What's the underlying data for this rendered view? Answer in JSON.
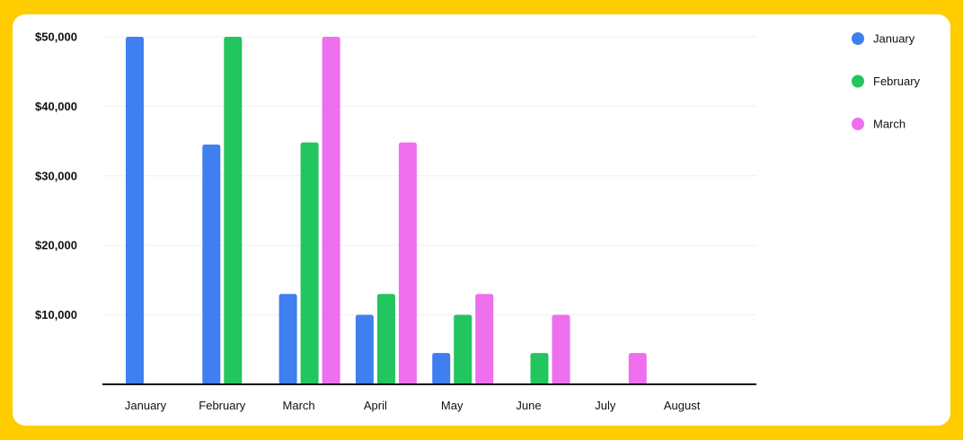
{
  "chart_data": {
    "type": "bar",
    "categories": [
      "January",
      "February",
      "March",
      "April",
      "May",
      "June",
      "July",
      "August"
    ],
    "series": [
      {
        "name": "January",
        "color": "#3F7FEF",
        "values": [
          50000,
          34500,
          13000,
          10000,
          4500,
          0,
          0,
          0
        ]
      },
      {
        "name": "February",
        "color": "#22C55E",
        "values": [
          0,
          50000,
          34800,
          13000,
          10000,
          4500,
          0,
          0
        ]
      },
      {
        "name": "March",
        "color": "#EE6FEE",
        "values": [
          0,
          0,
          50000,
          34800,
          13000,
          10000,
          4500,
          0
        ]
      }
    ],
    "yticks": [
      10000,
      20000,
      30000,
      40000,
      50000
    ],
    "ytick_labels": [
      "$10,000",
      "$20,000",
      "$30,000",
      "$40,000",
      "$50,000"
    ],
    "ylim": [
      0,
      50000
    ],
    "grid": true,
    "legend_position": "top-right",
    "title": "",
    "xlabel": "",
    "ylabel": ""
  }
}
